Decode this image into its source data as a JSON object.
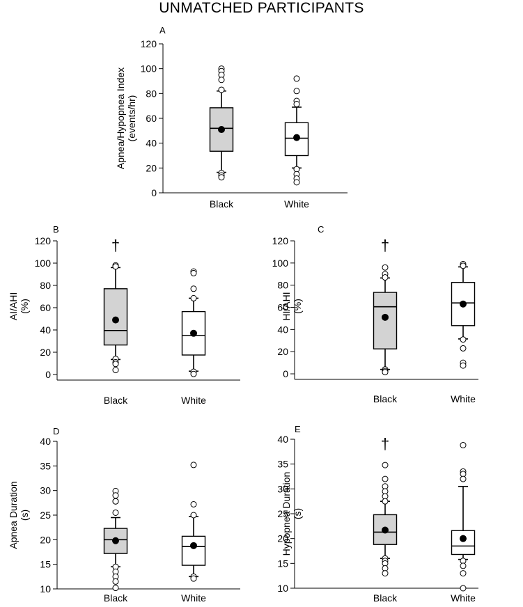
{
  "figure_title": "UNMATCHED PARTICIPANTS",
  "colors": {
    "black_box_fill": "#d3d3d3",
    "white_box_fill": "#ffffff",
    "ink": "#000000"
  },
  "chart_data": [
    {
      "panel": "A",
      "type": "box",
      "ylabel_lines": [
        "Apnea/Hypopnea Index",
        "(events/hr)"
      ],
      "ylim": [
        0,
        120
      ],
      "yticks": [
        0,
        20,
        40,
        60,
        80,
        100,
        120
      ],
      "tick_labels": [
        "0",
        "20",
        "40",
        "60",
        "80",
        "100",
        "120"
      ],
      "categories": [
        "Black",
        "White"
      ],
      "groups": [
        {
          "name": "Black",
          "fill": "grey",
          "q1": 33.5,
          "median": 52,
          "q3": 68.5,
          "whisker_low": 16.5,
          "whisker_high": 82,
          "mean": 51,
          "outliers": [
            100,
            98,
            95,
            91,
            83,
            16,
            14,
            12.5
          ],
          "dagger": null
        },
        {
          "name": "White",
          "fill": "white",
          "q1": 30,
          "median": 44,
          "q3": 56.5,
          "whisker_low": 20,
          "whisker_high": 69,
          "mean": 44.5,
          "outliers": [
            92,
            82,
            74,
            71.5,
            19,
            15,
            11.5,
            8.5
          ],
          "dagger": null
        }
      ]
    },
    {
      "panel": "B",
      "type": "box",
      "ylabel_lines": [
        "AI/AHI",
        "(%)"
      ],
      "ylim": [
        -5,
        120
      ],
      "yticks": [
        0,
        20,
        40,
        60,
        80,
        100,
        120
      ],
      "tick_labels": [
        "0",
        "20",
        "40",
        "60",
        "80",
        "100",
        "120"
      ],
      "categories": [
        "Black",
        "White"
      ],
      "groups": [
        {
          "name": "Black",
          "fill": "grey",
          "q1": 26.5,
          "median": 39.5,
          "q3": 77,
          "whisker_low": 13.5,
          "whisker_high": 96,
          "mean": 49,
          "outliers": [
            98,
            97,
            14,
            11,
            9.5,
            4
          ],
          "dagger": "†"
        },
        {
          "name": "White",
          "fill": "white",
          "q1": 17.5,
          "median": 35,
          "q3": 56.5,
          "whisker_low": 3,
          "whisker_high": 68.5,
          "mean": 37,
          "outliers": [
            92.5,
            91,
            77,
            68.5,
            2.5,
            0.5
          ],
          "dagger": null
        }
      ]
    },
    {
      "panel": "C",
      "type": "box",
      "ylabel_lines": [
        "HI/AHI",
        "(%)"
      ],
      "ylim": [
        -5,
        120
      ],
      "yticks": [
        0,
        20,
        40,
        60,
        80,
        100,
        120
      ],
      "tick_labels": [
        "0",
        "20",
        "40",
        "60",
        "80",
        "100",
        "120"
      ],
      "categories": [
        "Black",
        "White"
      ],
      "groups": [
        {
          "name": "Black",
          "fill": "grey",
          "q1": 22.5,
          "median": 60.5,
          "q3": 73.5,
          "whisker_low": 4,
          "whisker_high": 86.5,
          "mean": 51,
          "outliers": [
            96,
            90,
            87,
            4,
            2.5,
            1.5
          ],
          "dagger": "†"
        },
        {
          "name": "White",
          "fill": "white",
          "q1": 43.5,
          "median": 64,
          "q3": 82.5,
          "whisker_low": 31.5,
          "whisker_high": 96.5,
          "mean": 63,
          "outliers": [
            99,
            97.5,
            31,
            23,
            10,
            7.5
          ],
          "dagger": null
        }
      ]
    },
    {
      "panel": "D",
      "type": "box",
      "ylabel_lines": [
        "Apnea Duration",
        "(s)"
      ],
      "ylim": [
        10,
        40
      ],
      "yticks": [
        10,
        15,
        20,
        25,
        30,
        35,
        40
      ],
      "tick_labels": [
        "10",
        "15",
        "20",
        "25",
        "30",
        "35",
        "40"
      ],
      "categories": [
        "Black",
        "White"
      ],
      "groups": [
        {
          "name": "Black",
          "fill": "grey",
          "q1": 17.2,
          "median": 20,
          "q3": 22.3,
          "whisker_low": 14.5,
          "whisker_high": 24.5,
          "mean": 19.8,
          "outliers": [
            29.9,
            29,
            27.8,
            27.8,
            25.5,
            14.5,
            13.5,
            12.5,
            11.5,
            10.2
          ],
          "dagger": null
        },
        {
          "name": "White",
          "fill": "white",
          "q1": 14.8,
          "median": 18.6,
          "q3": 20.7,
          "whisker_low": 12.5,
          "whisker_high": 24.7,
          "mean": 18.8,
          "outliers": [
            35.2,
            27.2,
            25,
            12.5,
            12.1
          ],
          "dagger": null
        }
      ]
    },
    {
      "panel": "E",
      "type": "box",
      "ylabel_lines": [
        "Hypopnea Duration",
        "(s)"
      ],
      "ylim": [
        10,
        40
      ],
      "yticks": [
        10,
        15,
        20,
        25,
        30,
        35,
        40
      ],
      "tick_labels": [
        "10",
        "15",
        "20",
        "25",
        "30",
        "35",
        "40"
      ],
      "categories": [
        "Black",
        "White"
      ],
      "groups": [
        {
          "name": "Black",
          "fill": "grey",
          "q1": 18.8,
          "median": 21.3,
          "q3": 24.8,
          "whisker_low": 16,
          "whisker_high": 27.5,
          "mean": 21.7,
          "outliers": [
            34.8,
            32,
            30.5,
            29.5,
            28.5,
            27.5,
            16,
            15.5,
            15,
            14,
            13
          ],
          "dagger": "†"
        },
        {
          "name": "White",
          "fill": "white",
          "q1": 16.8,
          "median": 18.5,
          "q3": 21.6,
          "whisker_low": 15.8,
          "whisker_high": 30.5,
          "mean": 20,
          "outliers": [
            38.8,
            33.5,
            33,
            32,
            15.5,
            14.5,
            13,
            10
          ],
          "dagger": null
        }
      ]
    }
  ]
}
